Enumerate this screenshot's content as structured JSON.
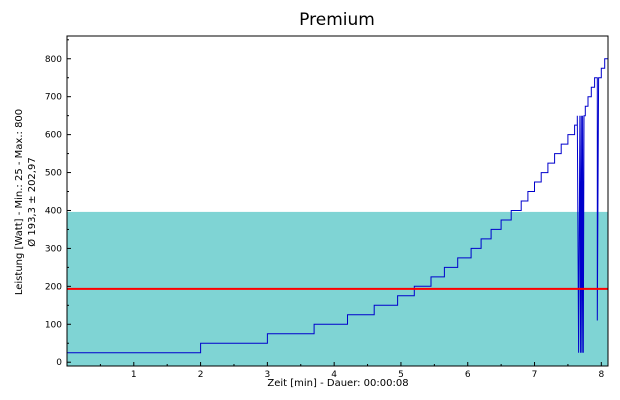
{
  "chart_data": {
    "type": "line",
    "title": "Premium",
    "xlabel": "Zeit [min] - Dauer: 00:00:08",
    "ylabel_lines": [
      "Leistung [Watt] - Min.: 25 - Max.: 800",
      "Ø 193,3 ± 202,97"
    ],
    "xlim": [
      0,
      8.1
    ],
    "ylim": [
      -10,
      860
    ],
    "x_ticks": [
      1,
      2,
      3,
      4,
      5,
      6,
      7,
      8
    ],
    "y_ticks": [
      0,
      100,
      200,
      300,
      400,
      500,
      600,
      700,
      800
    ],
    "grid": false,
    "mean": 193.3,
    "std_band": [
      -9.67,
      396.27
    ],
    "colors": {
      "line": "#0000cc",
      "mean_line": "#ff0000",
      "band": "#7fd4d4",
      "frame": "#000000"
    },
    "series": [
      {
        "x": [
          0,
          2.0,
          2.0,
          3.0,
          3.0,
          3.7,
          3.7,
          4.2,
          4.2,
          4.6,
          4.6,
          4.95,
          4.95,
          5.2,
          5.2,
          5.45,
          5.45,
          5.65,
          5.65,
          5.85,
          5.85,
          6.05,
          6.05,
          6.2,
          6.2,
          6.35,
          6.35,
          6.5,
          6.5,
          6.65,
          6.65,
          6.8,
          6.8,
          6.9,
          6.9,
          7.0,
          7.0,
          7.1,
          7.1,
          7.2,
          7.2,
          7.3,
          7.3,
          7.4,
          7.4,
          7.5,
          7.5,
          7.6,
          7.6,
          7.64,
          7.64,
          7.66,
          7.68,
          7.69,
          7.7,
          7.71,
          7.72,
          7.73,
          7.74,
          7.76,
          7.76,
          7.8,
          7.8,
          7.85,
          7.85,
          7.9,
          7.9,
          7.94,
          7.94,
          7.96,
          7.97,
          8.0,
          8.0,
          8.05,
          8.05,
          8.1
        ],
        "y": [
          25,
          25,
          50,
          50,
          75,
          75,
          100,
          100,
          125,
          125,
          150,
          150,
          175,
          175,
          200,
          200,
          225,
          225,
          250,
          250,
          275,
          275,
          300,
          300,
          325,
          325,
          350,
          350,
          375,
          375,
          400,
          400,
          425,
          425,
          450,
          450,
          475,
          475,
          500,
          500,
          525,
          525,
          550,
          550,
          575,
          575,
          600,
          600,
          625,
          625,
          650,
          25,
          650,
          25,
          650,
          25,
          650,
          25,
          650,
          650,
          675,
          675,
          700,
          700,
          725,
          725,
          750,
          750,
          110,
          750,
          750,
          750,
          775,
          775,
          800,
          800
        ]
      }
    ]
  }
}
